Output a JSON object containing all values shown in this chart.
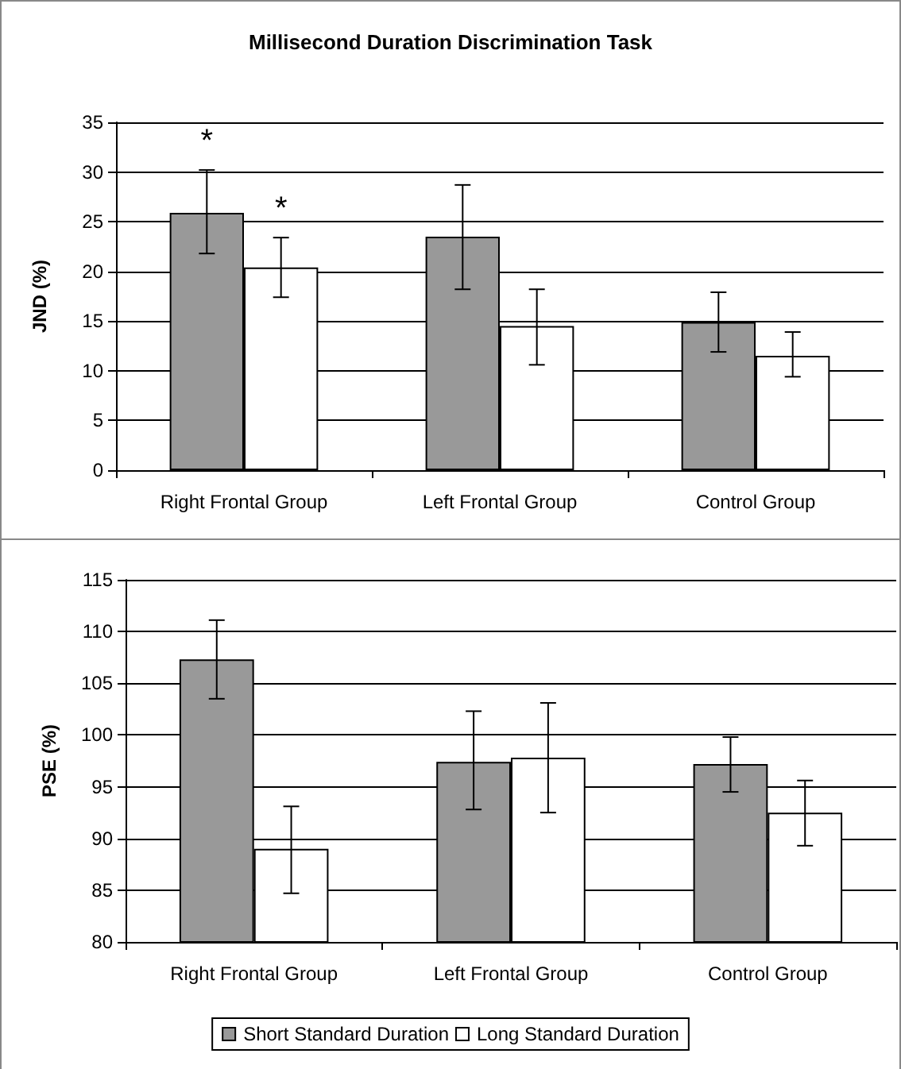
{
  "chart_data": [
    {
      "type": "bar",
      "title": "Millisecond Duration Discrimination Task",
      "ylabel": "JND (%)",
      "categories": [
        "Right Frontal Group",
        "Left Frontal Group",
        "Control Group"
      ],
      "series": [
        {
          "color": "#999999",
          "values": [
            25.9,
            23.5,
            14.9
          ],
          "errors": [
            [
              21.8,
              30.2
            ],
            [
              18.2,
              28.7
            ],
            [
              11.9,
              17.9
            ]
          ]
        },
        {
          "color": "#ffffff",
          "values": [
            20.4,
            14.5,
            11.5
          ],
          "errors": [
            [
              17.4,
              23.4
            ],
            [
              10.6,
              18.2
            ],
            [
              9.4,
              13.9
            ]
          ]
        }
      ],
      "annotations": [
        "*",
        "*"
      ],
      "ylim": [
        0,
        35
      ],
      "yticks": [
        0,
        5,
        10,
        15,
        20,
        25,
        30,
        35
      ],
      "grid": "y",
      "legend": false
    },
    {
      "type": "bar",
      "ylabel": "PSE (%)",
      "categories": [
        "Right Frontal Group",
        "Left Frontal Group",
        "Control Group"
      ],
      "series": [
        {
          "name": "Short Standard Duration",
          "color": "#999999",
          "values": [
            107.3,
            97.4,
            97.2
          ],
          "errors": [
            [
              103.5,
              111.1
            ],
            [
              92.8,
              102.3
            ],
            [
              94.5,
              99.8
            ]
          ]
        },
        {
          "name": "Long Standard Duration",
          "color": "#ffffff",
          "values": [
            89.0,
            97.8,
            92.5
          ],
          "errors": [
            [
              84.7,
              93.1
            ],
            [
              92.5,
              103.1
            ],
            [
              89.3,
              95.6
            ]
          ]
        }
      ],
      "ylim": [
        80,
        115
      ],
      "yticks": [
        80,
        85,
        90,
        95,
        100,
        105,
        110,
        115
      ],
      "grid": "y",
      "legend": "bottom"
    }
  ]
}
